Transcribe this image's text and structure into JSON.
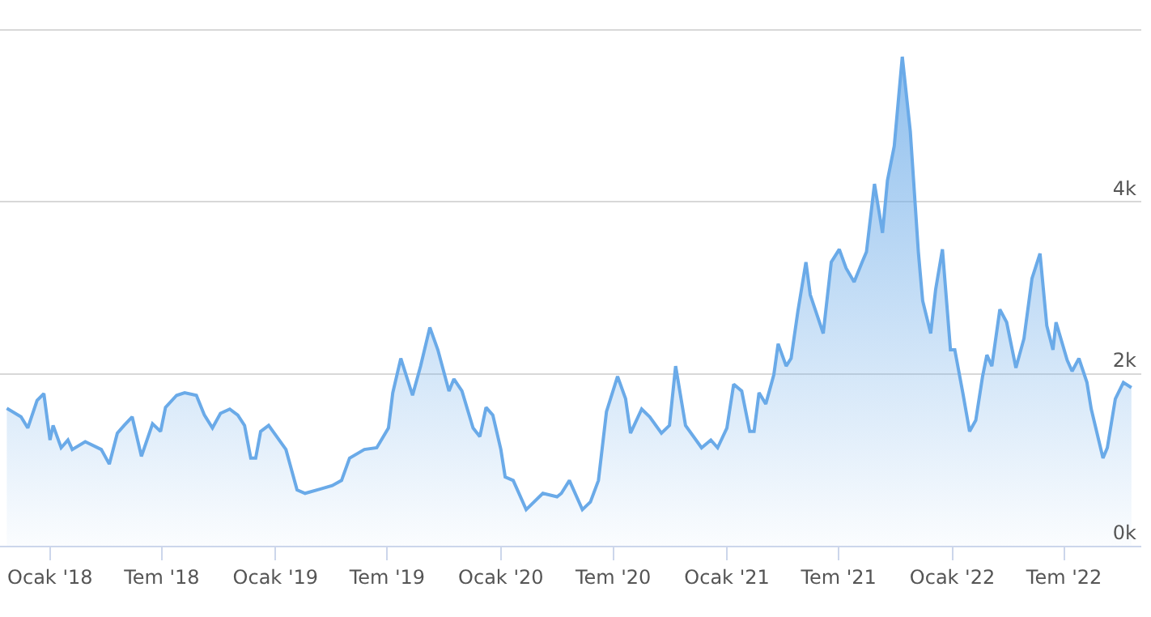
{
  "chart_data": {
    "type": "area",
    "marker": "none",
    "grid": "y",
    "legend": false,
    "line_style": "solid",
    "xlim": [
      "2017-10-12",
      "2022-11-03"
    ],
    "ylim": [
      0,
      6350
    ],
    "xticks": [
      {
        "value": "2018-01-01",
        "label": "Ocak '18"
      },
      {
        "value": "2018-07-01",
        "label": "Tem '18"
      },
      {
        "value": "2019-01-01",
        "label": "Ocak '19"
      },
      {
        "value": "2019-07-01",
        "label": "Tem '19"
      },
      {
        "value": "2020-01-01",
        "label": "Ocak '20"
      },
      {
        "value": "2020-07-01",
        "label": "Tem '20"
      },
      {
        "value": "2021-01-01",
        "label": "Ocak '21"
      },
      {
        "value": "2021-07-01",
        "label": "Tem '21"
      },
      {
        "value": "2022-01-01",
        "label": "Ocak '22"
      },
      {
        "value": "2022-07-01",
        "label": "Tem '22"
      }
    ],
    "yticks": [
      {
        "value": 0,
        "label": "0k"
      },
      {
        "value": 2000,
        "label": "2k"
      },
      {
        "value": 4000,
        "label": "4k"
      },
      {
        "value": 6000,
        "label": null
      }
    ],
    "x": [
      "2017-10-23",
      "2017-11-15",
      "2017-11-26",
      "2017-12-11",
      "2017-12-22",
      "2018-01-01",
      "2018-01-06",
      "2018-01-19",
      "2018-01-30",
      "2018-02-06",
      "2018-02-27",
      "2018-03-25",
      "2018-04-07",
      "2018-04-20",
      "2018-05-01",
      "2018-05-14",
      "2018-05-29",
      "2018-06-16",
      "2018-06-29",
      "2018-07-07",
      "2018-07-25",
      "2018-08-07",
      "2018-08-26",
      "2018-09-08",
      "2018-09-21",
      "2018-10-04",
      "2018-10-19",
      "2018-11-01",
      "2018-11-12",
      "2018-11-22",
      "2018-11-30",
      "2018-12-08",
      "2018-12-21",
      "2019-01-03",
      "2019-01-18",
      "2019-02-05",
      "2019-02-18",
      "2019-03-15",
      "2019-04-03",
      "2019-04-18",
      "2019-05-01",
      "2019-05-25",
      "2019-06-14",
      "2019-07-03",
      "2019-07-10",
      "2019-07-23",
      "2019-08-11",
      "2019-08-24",
      "2019-09-08",
      "2019-09-21",
      "2019-10-09",
      "2019-10-17",
      "2019-10-30",
      "2019-11-17",
      "2019-11-28",
      "2019-12-08",
      "2019-12-19",
      "2020-01-01",
      "2020-01-08",
      "2020-01-21",
      "2020-02-11",
      "2020-03-09",
      "2020-04-01",
      "2020-04-08",
      "2020-04-21",
      "2020-05-12",
      "2020-05-25",
      "2020-06-07",
      "2020-06-20",
      "2020-07-08",
      "2020-07-21",
      "2020-07-29",
      "2020-08-16",
      "2020-08-29",
      "2020-09-17",
      "2020-09-30",
      "2020-10-10",
      "2020-10-26",
      "2020-11-21",
      "2020-12-06",
      "2020-12-17",
      "2021-01-01",
      "2021-01-12",
      "2021-01-25",
      "2021-02-07",
      "2021-02-14",
      "2021-02-22",
      "2021-03-05",
      "2021-03-18",
      "2021-03-25",
      "2021-04-07",
      "2021-04-15",
      "2021-04-26",
      "2021-05-09",
      "2021-05-16",
      "2021-06-06",
      "2021-06-19",
      "2021-07-02",
      "2021-07-13",
      "2021-07-26",
      "2021-08-08",
      "2021-08-15",
      "2021-08-28",
      "2021-09-10",
      "2021-09-18",
      "2021-09-29",
      "2021-10-12",
      "2021-10-25",
      "2021-11-07",
      "2021-11-14",
      "2021-11-27",
      "2021-12-05",
      "2021-12-16",
      "2021-12-29",
      "2022-01-05",
      "2022-01-18",
      "2022-01-29",
      "2022-02-08",
      "2022-02-19",
      "2022-02-26",
      "2022-03-06",
      "2022-03-19",
      "2022-03-30",
      "2022-04-14",
      "2022-04-27",
      "2022-05-10",
      "2022-05-23",
      "2022-06-03",
      "2022-06-13",
      "2022-06-18",
      "2022-07-06",
      "2022-07-14",
      "2022-07-25",
      "2022-08-07",
      "2022-08-14",
      "2022-09-02",
      "2022-09-09",
      "2022-09-22",
      "2022-10-05",
      "2022-10-18"
    ],
    "series": [
      {
        "color": "#6aaae8",
        "values": [
          1600,
          1500,
          1370,
          1690,
          1770,
          1230,
          1400,
          1140,
          1230,
          1120,
          1210,
          1120,
          950,
          1310,
          1400,
          1500,
          1040,
          1420,
          1330,
          1610,
          1750,
          1780,
          1750,
          1520,
          1370,
          1540,
          1590,
          1520,
          1400,
          1020,
          1020,
          1330,
          1400,
          1270,
          1120,
          650,
          610,
          660,
          700,
          760,
          1020,
          1120,
          1140,
          1370,
          1780,
          2180,
          1750,
          2090,
          2540,
          2280,
          1800,
          1940,
          1800,
          1370,
          1270,
          1610,
          1520,
          1120,
          800,
          760,
          420,
          610,
          570,
          610,
          760,
          420,
          510,
          760,
          1560,
          1970,
          1710,
          1310,
          1590,
          1500,
          1310,
          1400,
          2090,
          1400,
          1140,
          1230,
          1140,
          1370,
          1880,
          1800,
          1330,
          1330,
          1780,
          1650,
          1990,
          2350,
          2090,
          2180,
          2730,
          3300,
          2920,
          2470,
          3300,
          3450,
          3230,
          3070,
          3300,
          3420,
          4210,
          3640,
          4250,
          4650,
          5690,
          4820,
          3420,
          2850,
          2470,
          2980,
          3450,
          2280,
          2280,
          1780,
          1330,
          1460,
          1970,
          2220,
          2090,
          2750,
          2600,
          2070,
          2410,
          3110,
          3400,
          2560,
          2280,
          2600,
          2160,
          2030,
          2180,
          1900,
          1590,
          1020,
          1140,
          1710,
          1900,
          1840
        ]
      }
    ]
  }
}
